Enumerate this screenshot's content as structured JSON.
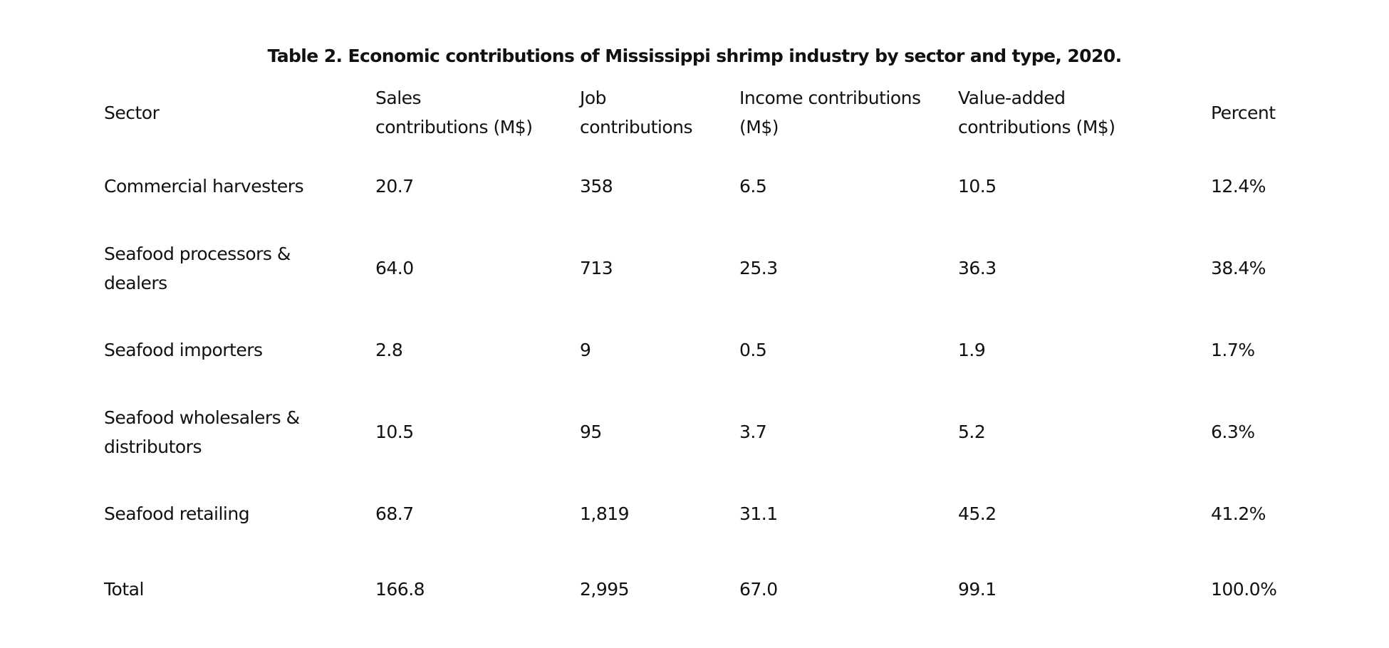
{
  "table": {
    "caption": "Table 2. Economic contributions of Mississippi shrimp industry by sector and type, 2020.",
    "headers": [
      "Sector",
      "Sales contributions (M$)",
      "Job contributions",
      "Income contributions (M$)",
      "Value-added contributions (M$)",
      "Percent"
    ],
    "rows": [
      [
        "Commercial harvesters",
        "20.7",
        "358",
        "6.5",
        "10.5",
        "12.4%"
      ],
      [
        "Seafood processors & dealers",
        "64.0",
        "713",
        "25.3",
        "36.3",
        "38.4%"
      ],
      [
        "Seafood importers",
        "2.8",
        "9",
        "0.5",
        "1.9",
        "1.7%"
      ],
      [
        "Seafood wholesalers & distributors",
        "10.5",
        "95",
        "3.7",
        "5.2",
        "6.3%"
      ],
      [
        "Seafood retailing",
        "68.7",
        "1,819",
        "31.1",
        "45.2",
        "41.2%"
      ],
      [
        "Total",
        "166.8",
        "2,995",
        "67.0",
        "99.1",
        "100.0%"
      ]
    ]
  }
}
